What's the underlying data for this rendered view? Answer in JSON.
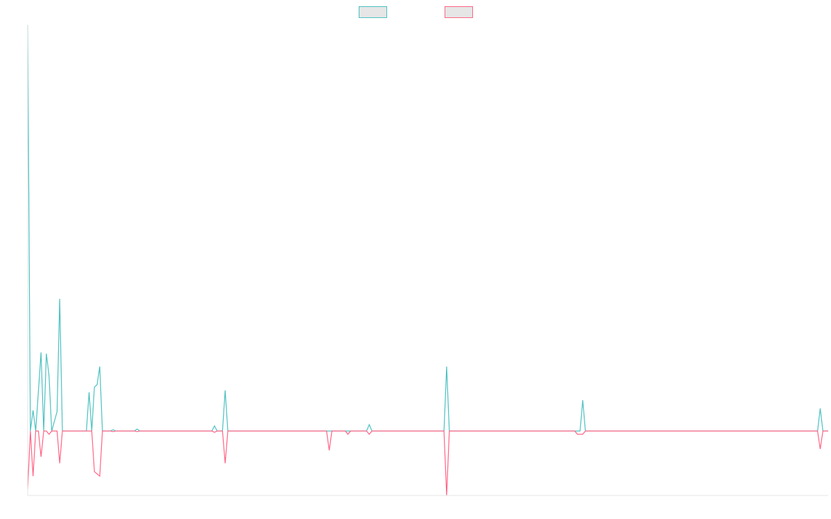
{
  "chart_data": {
    "type": "line",
    "title": "",
    "xlabel": "",
    "ylabel": "",
    "grid": false,
    "legend_position": "top-center",
    "xlim": [
      0,
      300
    ],
    "ylim": [
      -100,
      630
    ],
    "baseline": 0,
    "series": [
      {
        "color": "#4bc0c0",
        "legend_fill": "#e6e6e6",
        "points": [
          [
            0,
            630
          ],
          [
            1,
            0
          ],
          [
            2,
            32
          ],
          [
            3,
            0
          ],
          [
            5,
            122
          ],
          [
            6,
            0
          ],
          [
            7,
            120
          ],
          [
            8,
            85
          ],
          [
            9,
            0
          ],
          [
            11,
            30
          ],
          [
            12,
            205
          ],
          [
            13,
            0
          ],
          [
            22,
            0
          ],
          [
            23,
            60
          ],
          [
            24,
            0
          ],
          [
            25,
            68
          ],
          [
            26,
            72
          ],
          [
            27,
            100
          ],
          [
            28,
            0
          ],
          [
            31,
            0
          ],
          [
            32,
            2
          ],
          [
            33,
            0
          ],
          [
            40,
            0
          ],
          [
            41,
            3
          ],
          [
            42,
            0
          ],
          [
            69,
            0
          ],
          [
            70,
            8
          ],
          [
            71,
            0
          ],
          [
            73,
            0
          ],
          [
            74,
            63
          ],
          [
            75,
            0
          ],
          [
            113,
            0
          ],
          [
            117,
            0
          ],
          [
            120,
            0
          ],
          [
            127,
            0
          ],
          [
            128,
            10
          ],
          [
            129,
            0
          ],
          [
            156,
            0
          ],
          [
            157,
            100
          ],
          [
            158,
            0
          ],
          [
            207,
            0
          ],
          [
            208,
            48
          ],
          [
            209,
            0
          ],
          [
            296,
            0
          ],
          [
            297,
            35
          ],
          [
            298,
            0
          ],
          [
            300,
            0
          ]
        ]
      },
      {
        "color": "#ff6384",
        "legend_fill": "#e6e6e6",
        "points": [
          [
            0,
            -90
          ],
          [
            1,
            0
          ],
          [
            2,
            -70
          ],
          [
            3,
            0
          ],
          [
            4,
            0
          ],
          [
            5,
            -40
          ],
          [
            6,
            0
          ],
          [
            7,
            0
          ],
          [
            8,
            -5
          ],
          [
            9,
            0
          ],
          [
            11,
            0
          ],
          [
            12,
            -50
          ],
          [
            13,
            0
          ],
          [
            22,
            0
          ],
          [
            24,
            0
          ],
          [
            25,
            -63
          ],
          [
            27,
            -70
          ],
          [
            28,
            0
          ],
          [
            31,
            0
          ],
          [
            32,
            -1
          ],
          [
            33,
            0
          ],
          [
            40,
            0
          ],
          [
            41,
            -1
          ],
          [
            42,
            0
          ],
          [
            69,
            0
          ],
          [
            70,
            -2
          ],
          [
            71,
            0
          ],
          [
            73,
            0
          ],
          [
            74,
            -50
          ],
          [
            75,
            0
          ],
          [
            112,
            0
          ],
          [
            113,
            -30
          ],
          [
            114,
            0
          ],
          [
            119,
            0
          ],
          [
            120,
            -5
          ],
          [
            121,
            0
          ],
          [
            127,
            0
          ],
          [
            128,
            -5
          ],
          [
            129,
            0
          ],
          [
            156,
            0
          ],
          [
            157,
            -100
          ],
          [
            158,
            0
          ],
          [
            205,
            0
          ],
          [
            206,
            -5
          ],
          [
            208,
            -5
          ],
          [
            209,
            0
          ],
          [
            296,
            0
          ],
          [
            297,
            -28
          ],
          [
            298,
            0
          ],
          [
            300,
            0
          ]
        ]
      }
    ]
  }
}
